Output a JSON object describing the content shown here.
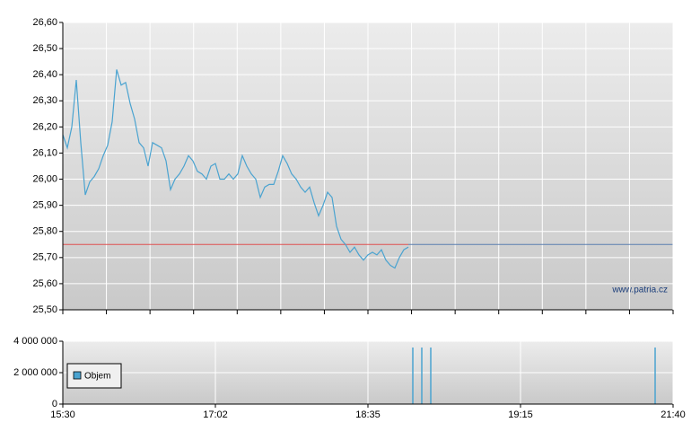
{
  "chart_data": [
    {
      "type": "line",
      "watermark": "www.patria.cz",
      "reference_value": 25.75,
      "reference_color": "#e05050",
      "reference_color_after": "#5b7fb0",
      "ylim": [
        25.5,
        26.6
      ],
      "yticks": [
        {
          "value": 25.5,
          "label": "25,50"
        },
        {
          "value": 25.6,
          "label": "25,60"
        },
        {
          "value": 25.7,
          "label": "25,70"
        },
        {
          "value": 25.8,
          "label": "25,80"
        },
        {
          "value": 25.9,
          "label": "25,90"
        },
        {
          "value": 26.0,
          "label": "26,00"
        },
        {
          "value": 26.1,
          "label": "26,10"
        },
        {
          "value": 26.2,
          "label": "26,20"
        },
        {
          "value": 26.3,
          "label": "26,30"
        },
        {
          "value": 26.4,
          "label": "26,40"
        },
        {
          "value": 26.5,
          "label": "26,50"
        },
        {
          "value": 26.6,
          "label": "26,60"
        }
      ],
      "grid": true,
      "color": "#4aa3d0",
      "values": [
        26.17,
        26.12,
        26.2,
        26.38,
        26.14,
        25.94,
        25.99,
        26.01,
        26.04,
        26.09,
        26.13,
        26.22,
        26.42,
        26.36,
        26.37,
        26.29,
        26.23,
        26.14,
        26.12,
        26.05,
        26.14,
        26.13,
        26.12,
        26.07,
        25.96,
        26.0,
        26.02,
        26.05,
        26.09,
        26.07,
        26.03,
        26.02,
        26.0,
        26.05,
        26.06,
        26.0,
        26.0,
        26.02,
        26.0,
        26.02,
        26.09,
        26.05,
        26.02,
        26.0,
        25.93,
        25.97,
        25.98,
        25.98,
        26.03,
        26.09,
        26.06,
        26.02,
        26.0,
        25.97,
        25.95,
        25.97,
        25.91,
        25.86,
        25.9,
        25.95,
        25.93,
        25.82,
        25.77,
        25.75,
        25.72,
        25.74,
        25.71,
        25.69,
        25.71,
        25.72,
        25.71,
        25.73,
        25.69,
        25.67,
        25.66,
        25.7,
        25.73,
        25.74
      ]
    },
    {
      "type": "bar",
      "legend": "Objem",
      "color": "#4aa3d0",
      "ylim": [
        0,
        4000000
      ],
      "yticks": [
        0,
        {
          "value": 2000000,
          "label": "2 000 000"
        },
        {
          "value": 4000000,
          "label": "4 000 000"
        }
      ],
      "x_labels": [
        "15:30",
        "17:02",
        "18:35",
        "19:15",
        "21:40"
      ],
      "values": [
        0,
        0,
        20000,
        0,
        0,
        0,
        0,
        0,
        0,
        0,
        0,
        0,
        0,
        0,
        0,
        0,
        0,
        0,
        0,
        0,
        0,
        0,
        0,
        0,
        0,
        0,
        30000,
        0,
        0,
        0,
        30000,
        0,
        0,
        30000,
        30000,
        0,
        0,
        0,
        0,
        3600000,
        3600000,
        3600000,
        0,
        0,
        0,
        0,
        0,
        0,
        0,
        0,
        0,
        0,
        0,
        0,
        0,
        0,
        0,
        0,
        0,
        0,
        0,
        0,
        0,
        0,
        0,
        0,
        3600000,
        0,
        0
      ]
    }
  ]
}
